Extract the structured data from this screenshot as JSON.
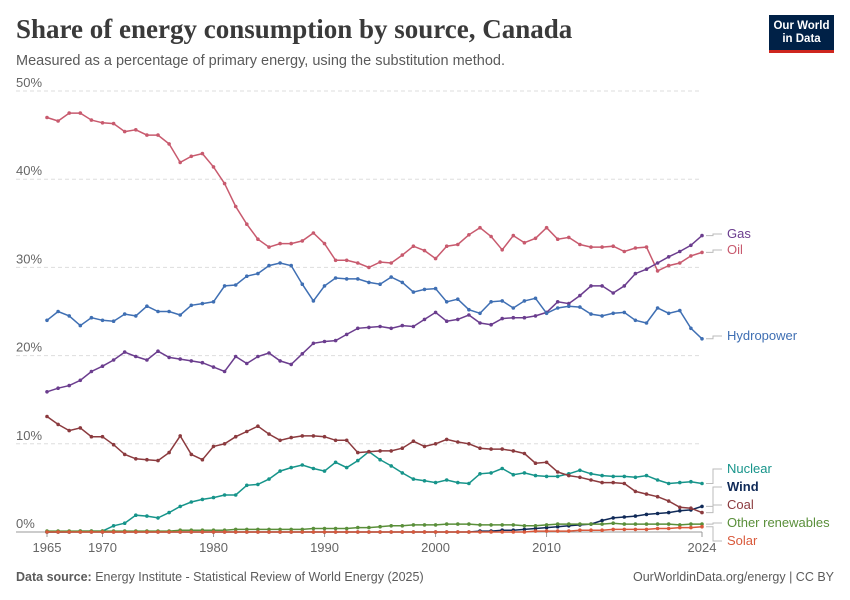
{
  "header": {
    "title": "Share of energy consumption by source, Canada",
    "subtitle": "Measured as a percentage of primary energy, using the substitution method.",
    "logo_line1": "Our World",
    "logo_line2": "in Data"
  },
  "footer": {
    "source_label": "Data source:",
    "source_text": "Energy Institute - Statistical Review of World Energy (2025)",
    "credit": "OurWorldinData.org/energy | CC BY"
  },
  "chart_data": {
    "type": "line",
    "title": "Share of energy consumption by source, Canada",
    "subtitle": "Measured as a percentage of primary energy, using the substitution method.",
    "y_ticks": [
      "0%",
      "10%",
      "20%",
      "30%",
      "40%",
      "50%"
    ],
    "y_tick_values": [
      0,
      10,
      20,
      30,
      40,
      50
    ],
    "x_ticks": [
      "1965",
      "1970",
      "1980",
      "1990",
      "2000",
      "2010",
      "2024"
    ],
    "x_tick_values": [
      1965,
      1970,
      1980,
      1990,
      2000,
      2010,
      2024
    ],
    "xlim": [
      1965,
      2024
    ],
    "ylim": [
      0,
      50
    ],
    "grid": "horizontal dashed",
    "legend": "inline labels at right end of lines",
    "series": [
      {
        "name": "Oil",
        "color": "#c85a6e",
        "values": [
          47.0,
          46.6,
          47.5,
          47.5,
          46.7,
          46.4,
          46.3,
          45.4,
          45.6,
          45.0,
          45.0,
          44.0,
          41.9,
          42.6,
          42.9,
          41.4,
          39.5,
          36.9,
          34.9,
          33.2,
          32.3,
          32.7,
          32.7,
          33.0,
          33.9,
          32.7,
          30.8,
          30.8,
          30.5,
          30.0,
          30.6,
          30.5,
          31.4,
          32.4,
          31.9,
          31.0,
          32.4,
          32.6,
          33.7,
          34.5,
          33.5,
          32.0,
          33.6,
          32.8,
          33.3,
          34.5,
          33.2,
          33.4,
          32.6,
          32.3,
          32.3,
          32.4,
          31.8,
          32.2,
          32.3,
          29.6,
          30.2,
          30.5,
          31.3,
          31.7
        ]
      },
      {
        "name": "Gas",
        "color": "#6b3d8e",
        "values": [
          15.9,
          16.3,
          16.6,
          17.2,
          18.2,
          18.8,
          19.5,
          20.4,
          19.9,
          19.5,
          20.5,
          19.8,
          19.6,
          19.4,
          19.2,
          18.7,
          18.2,
          19.9,
          19.1,
          19.9,
          20.3,
          19.4,
          19.0,
          20.2,
          21.4,
          21.6,
          21.7,
          22.4,
          23.1,
          23.2,
          23.3,
          23.1,
          23.4,
          23.3,
          24.1,
          24.9,
          23.9,
          24.1,
          24.6,
          23.7,
          23.5,
          24.2,
          24.3,
          24.3,
          24.5,
          24.9,
          26.1,
          25.9,
          26.8,
          27.9,
          27.9,
          27.1,
          27.9,
          29.3,
          29.8,
          30.5,
          31.2,
          31.8,
          32.5,
          33.6
        ]
      },
      {
        "name": "Hydropower",
        "color": "#3f6fb3",
        "values": [
          24.0,
          25.0,
          24.5,
          23.4,
          24.3,
          24.0,
          23.9,
          24.7,
          24.5,
          25.6,
          25.0,
          25.0,
          24.6,
          25.7,
          25.9,
          26.1,
          27.9,
          28.0,
          29.0,
          29.3,
          30.2,
          30.5,
          30.2,
          28.1,
          26.2,
          27.9,
          28.8,
          28.7,
          28.7,
          28.3,
          28.1,
          28.9,
          28.3,
          27.2,
          27.5,
          27.6,
          26.1,
          26.4,
          25.2,
          24.8,
          26.1,
          26.2,
          25.4,
          26.2,
          26.5,
          24.8,
          25.4,
          25.6,
          25.5,
          24.7,
          24.5,
          24.8,
          24.9,
          24.0,
          23.7,
          25.4,
          24.8,
          25.1,
          23.1,
          21.9
        ]
      },
      {
        "name": "Nuclear",
        "color": "#16948a",
        "values": [
          0.0,
          0.0,
          0.0,
          0.1,
          0.1,
          0.1,
          0.7,
          1.0,
          1.9,
          1.8,
          1.6,
          2.2,
          2.9,
          3.4,
          3.7,
          3.9,
          4.2,
          4.2,
          5.3,
          5.4,
          6.0,
          6.9,
          7.3,
          7.6,
          7.2,
          6.9,
          7.9,
          7.3,
          8.1,
          9.1,
          8.2,
          7.5,
          6.7,
          6.0,
          5.8,
          5.6,
          5.9,
          5.6,
          5.5,
          6.6,
          6.7,
          7.2,
          6.5,
          6.7,
          6.4,
          6.3,
          6.3,
          6.6,
          7.0,
          6.6,
          6.4,
          6.3,
          6.3,
          6.2,
          6.4,
          5.9,
          5.5,
          5.6,
          5.7,
          5.5
        ]
      },
      {
        "name": "Wind",
        "color": "#102a58",
        "values": [
          0.0,
          0.0,
          0.0,
          0.0,
          0.0,
          0.0,
          0.0,
          0.0,
          0.0,
          0.0,
          0.0,
          0.0,
          0.0,
          0.0,
          0.0,
          0.0,
          0.0,
          0.0,
          0.0,
          0.0,
          0.0,
          0.0,
          0.0,
          0.0,
          0.0,
          0.0,
          0.0,
          0.0,
          0.0,
          0.0,
          0.0,
          0.0,
          0.0,
          0.0,
          0.0,
          0.0,
          0.0,
          0.0,
          0.0,
          0.1,
          0.1,
          0.2,
          0.2,
          0.3,
          0.4,
          0.5,
          0.6,
          0.7,
          0.8,
          0.9,
          1.3,
          1.6,
          1.7,
          1.8,
          2.0,
          2.1,
          2.2,
          2.4,
          2.5,
          2.9
        ]
      },
      {
        "name": "Coal",
        "color": "#8b3a3e",
        "values": [
          13.1,
          12.2,
          11.5,
          11.8,
          10.8,
          10.8,
          9.9,
          8.8,
          8.3,
          8.2,
          8.1,
          9.0,
          10.9,
          8.8,
          8.2,
          9.7,
          10.0,
          10.8,
          11.4,
          12.0,
          11.1,
          10.4,
          10.7,
          10.9,
          10.9,
          10.8,
          10.4,
          10.4,
          9.0,
          9.1,
          9.2,
          9.2,
          9.5,
          10.3,
          9.7,
          10.0,
          10.5,
          10.2,
          10.0,
          9.5,
          9.4,
          9.4,
          9.2,
          8.9,
          7.8,
          7.9,
          6.8,
          6.4,
          6.2,
          5.9,
          5.6,
          5.6,
          5.5,
          4.6,
          4.3,
          4.0,
          3.5,
          2.8,
          2.7,
          2.2
        ]
      },
      {
        "name": "Other renewables",
        "color": "#5a8f3a",
        "values": [
          0.1,
          0.1,
          0.1,
          0.1,
          0.1,
          0.1,
          0.1,
          0.1,
          0.1,
          0.1,
          0.1,
          0.1,
          0.2,
          0.2,
          0.2,
          0.2,
          0.2,
          0.3,
          0.3,
          0.3,
          0.3,
          0.3,
          0.3,
          0.3,
          0.4,
          0.4,
          0.4,
          0.4,
          0.5,
          0.5,
          0.6,
          0.7,
          0.7,
          0.8,
          0.8,
          0.8,
          0.9,
          0.9,
          0.9,
          0.8,
          0.8,
          0.8,
          0.8,
          0.7,
          0.7,
          0.8,
          0.9,
          0.9,
          0.9,
          0.9,
          0.9,
          1.0,
          0.9,
          0.9,
          0.9,
          0.9,
          0.9,
          0.8,
          0.9,
          0.9
        ]
      },
      {
        "name": "Solar",
        "color": "#d9593b",
        "values": [
          0.0,
          0.0,
          0.0,
          0.0,
          0.0,
          0.0,
          0.0,
          0.0,
          0.0,
          0.0,
          0.0,
          0.0,
          0.0,
          0.0,
          0.0,
          0.0,
          0.0,
          0.0,
          0.0,
          0.0,
          0.0,
          0.0,
          0.0,
          0.0,
          0.0,
          0.0,
          0.0,
          0.0,
          0.0,
          0.0,
          0.0,
          0.0,
          0.0,
          0.0,
          0.0,
          0.0,
          0.0,
          0.0,
          0.0,
          0.0,
          0.0,
          0.0,
          0.0,
          0.0,
          0.1,
          0.1,
          0.1,
          0.1,
          0.2,
          0.2,
          0.2,
          0.3,
          0.3,
          0.3,
          0.3,
          0.4,
          0.4,
          0.5,
          0.5,
          0.6
        ]
      }
    ],
    "x": [
      1965,
      1966,
      1967,
      1968,
      1969,
      1970,
      1971,
      1972,
      1973,
      1974,
      1975,
      1976,
      1977,
      1978,
      1979,
      1980,
      1981,
      1982,
      1983,
      1984,
      1985,
      1986,
      1987,
      1988,
      1989,
      1990,
      1991,
      1992,
      1993,
      1994,
      1995,
      1996,
      1997,
      1998,
      1999,
      2000,
      2001,
      2002,
      2003,
      2004,
      2005,
      2006,
      2007,
      2008,
      2009,
      2010,
      2011,
      2012,
      2013,
      2014,
      2015,
      2016,
      2017,
      2018,
      2019,
      2020,
      2021,
      2022,
      2023,
      2024
    ]
  }
}
